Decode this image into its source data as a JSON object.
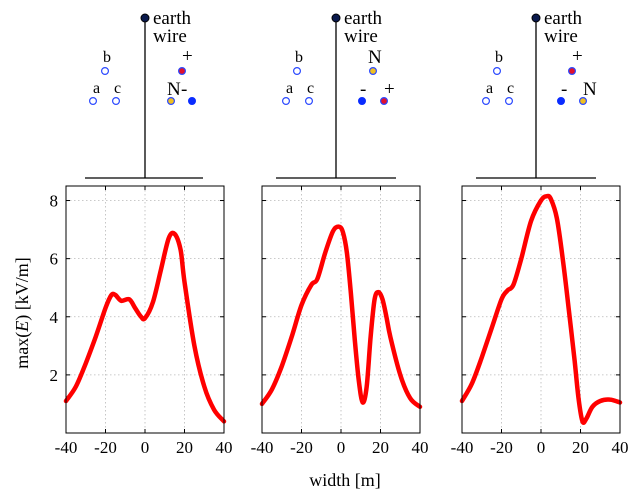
{
  "figure": {
    "xlabel": "width [m]",
    "ylabel": "max(E) [kV/m]",
    "ylabel_parts": {
      "pre": "max(",
      "var": "E",
      "post": ") [kV/m]"
    }
  },
  "diagrams": [
    {
      "earth_label_1": "earth",
      "earth_label_2": "wire",
      "circuit_left": [
        {
          "label": "b",
          "fill": "#ffffff",
          "stroke": "#2a48ff"
        },
        {
          "label": "a",
          "fill": "#ffffff",
          "stroke": "#2a48ff"
        },
        {
          "label": "c",
          "fill": "#ffffff",
          "stroke": "#2a48ff"
        }
      ],
      "circuit_right": [
        {
          "label": "+",
          "fill": "#e0102e",
          "stroke": "#2a48ff"
        },
        {
          "label": "N",
          "fill": "#f0c020",
          "stroke": "#2a48ff"
        },
        {
          "label": "-",
          "fill": "#0a2cff",
          "stroke": "#0a2cff"
        }
      ]
    },
    {
      "earth_label_1": "earth",
      "earth_label_2": "wire",
      "circuit_left": [
        {
          "label": "b",
          "fill": "#ffffff",
          "stroke": "#2a48ff"
        },
        {
          "label": "a",
          "fill": "#ffffff",
          "stroke": "#2a48ff"
        },
        {
          "label": "c",
          "fill": "#ffffff",
          "stroke": "#2a48ff"
        }
      ],
      "circuit_right": [
        {
          "label": "N",
          "fill": "#f0c020",
          "stroke": "#2a48ff"
        },
        {
          "label": "-",
          "fill": "#0a2cff",
          "stroke": "#0a2cff"
        },
        {
          "label": "+",
          "fill": "#e0102e",
          "stroke": "#2a48ff"
        }
      ]
    },
    {
      "earth_label_1": "earth",
      "earth_label_2": "wire",
      "circuit_left": [
        {
          "label": "b",
          "fill": "#ffffff",
          "stroke": "#2a48ff"
        },
        {
          "label": "a",
          "fill": "#ffffff",
          "stroke": "#2a48ff"
        },
        {
          "label": "c",
          "fill": "#ffffff",
          "stroke": "#2a48ff"
        }
      ],
      "circuit_right": [
        {
          "label": "+",
          "fill": "#e0102e",
          "stroke": "#2a48ff"
        },
        {
          "label": "-",
          "fill": "#0a2cff",
          "stroke": "#0a2cff"
        },
        {
          "label": "N",
          "fill": "#f0c020",
          "stroke": "#2a48ff"
        }
      ]
    }
  ],
  "chart_data": [
    {
      "type": "line",
      "xlim": [
        -40,
        40
      ],
      "ylim": [
        0,
        8.5
      ],
      "xticks": [
        -40,
        -20,
        0,
        20,
        40
      ],
      "yticks": [
        2,
        4,
        6,
        8
      ],
      "grid": true,
      "color": "#ff0000",
      "x": [
        -40,
        -35,
        -30,
        -25,
        -20,
        -17,
        -15,
        -12,
        -8,
        -5,
        -2,
        0,
        4,
        8,
        12,
        15,
        18,
        20,
        25,
        30,
        35,
        40
      ],
      "y": [
        1.1,
        1.6,
        2.4,
        3.3,
        4.3,
        4.75,
        4.75,
        4.55,
        4.6,
        4.3,
        4.0,
        3.95,
        4.5,
        5.6,
        6.7,
        6.85,
        6.3,
        5.2,
        3.0,
        1.6,
        0.8,
        0.4
      ]
    },
    {
      "type": "line",
      "xlim": [
        -40,
        40
      ],
      "ylim": [
        0,
        8.5
      ],
      "xticks": [
        -40,
        -20,
        0,
        20,
        40
      ],
      "yticks": [
        2,
        4,
        6,
        8
      ],
      "grid": true,
      "color": "#ff0000",
      "x": [
        -40,
        -35,
        -30,
        -25,
        -20,
        -15,
        -12,
        -8,
        -4,
        -1,
        1,
        3,
        5,
        7,
        9,
        11,
        13,
        15,
        17,
        19,
        21,
        23,
        25,
        30,
        35,
        40
      ],
      "y": [
        1.0,
        1.5,
        2.3,
        3.3,
        4.4,
        5.1,
        5.3,
        6.2,
        6.95,
        7.1,
        6.9,
        6.2,
        4.8,
        3.2,
        1.8,
        1.05,
        1.6,
        3.3,
        4.6,
        4.85,
        4.6,
        4.0,
        3.3,
        2.0,
        1.2,
        0.9
      ]
    },
    {
      "type": "line",
      "xlim": [
        -40,
        40
      ],
      "ylim": [
        0,
        8.5
      ],
      "xticks": [
        -40,
        -20,
        0,
        20,
        40
      ],
      "yticks": [
        2,
        4,
        6,
        8
      ],
      "grid": true,
      "color": "#ff0000",
      "x": [
        -40,
        -35,
        -30,
        -25,
        -20,
        -17,
        -14,
        -10,
        -5,
        0,
        3,
        5,
        8,
        11,
        14,
        17,
        19,
        21,
        23,
        26,
        30,
        35,
        40
      ],
      "y": [
        1.1,
        1.7,
        2.6,
        3.6,
        4.6,
        4.9,
        5.1,
        6.0,
        7.3,
        8.0,
        8.15,
        8.05,
        7.4,
        6.0,
        4.3,
        2.5,
        1.2,
        0.4,
        0.5,
        0.9,
        1.1,
        1.15,
        1.05
      ]
    }
  ]
}
